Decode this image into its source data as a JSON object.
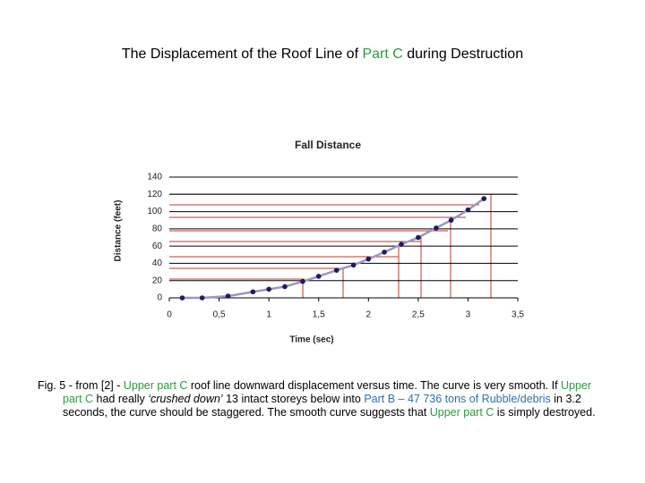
{
  "heading": [
    {
      "text": "The Displacement of the Roof Line of "
    },
    {
      "text": "Part C",
      "color": "#2e9a3e"
    },
    {
      "text": " during Destruction"
    }
  ],
  "chart_data": {
    "type": "line",
    "title": "Fall Distance",
    "x_label": "Time (sec)",
    "y_label": "Distance (feet)",
    "x": [
      0.13,
      0.33,
      0.59,
      0.84,
      1.0,
      1.16,
      1.34,
      1.5,
      1.68,
      1.85,
      2.0,
      2.16,
      2.33,
      2.5,
      2.68,
      2.83,
      3.0,
      3.16
    ],
    "series": [
      {
        "name": "Fall Distance",
        "color": "#1c1c5e",
        "line_color": "#9d95c4",
        "values": [
          0,
          0,
          2,
          7,
          10,
          13,
          19,
          25,
          32,
          38,
          45,
          53,
          62,
          70,
          81,
          90,
          102,
          115
        ]
      }
    ],
    "xlim": [
      0,
      3.5
    ],
    "xticks": [
      0,
      {
        "value": 0.5,
        "label": "0,5"
      },
      1,
      {
        "value": 1.5,
        "label": "1,5"
      },
      2,
      {
        "value": 2.5,
        "label": "2,5"
      },
      3,
      {
        "value": 3.5,
        "label": "3,5"
      }
    ],
    "ylim": [
      0,
      140
    ],
    "yticks": [
      0,
      20,
      40,
      60,
      80,
      100,
      120,
      140
    ],
    "grid": true
  },
  "caption": [
    {
      "text": "Fig. 5 -  from [2] - "
    },
    {
      "text": "Upper part C",
      "color": "#2e9a3e"
    },
    {
      "text": " roof line downward displacement versus time. The curve is very smooth. If "
    },
    {
      "text": "Upper part C",
      "color": "#2e9a3e"
    },
    {
      "text": " had really "
    },
    {
      "text": "‘crushed down’",
      "italic": true
    },
    {
      "text": " 13 intact storeys below into "
    },
    {
      "text": "Part B – 47 736 tons of Rubble/debris",
      "color": "#2f6fb0"
    },
    {
      "text": " in 3.2 seconds, the curve should be staggered. The smooth curve suggests that "
    },
    {
      "text": "Upper part C",
      "color": "#2e9a3e"
    },
    {
      "text": " is simply destroyed."
    }
  ]
}
